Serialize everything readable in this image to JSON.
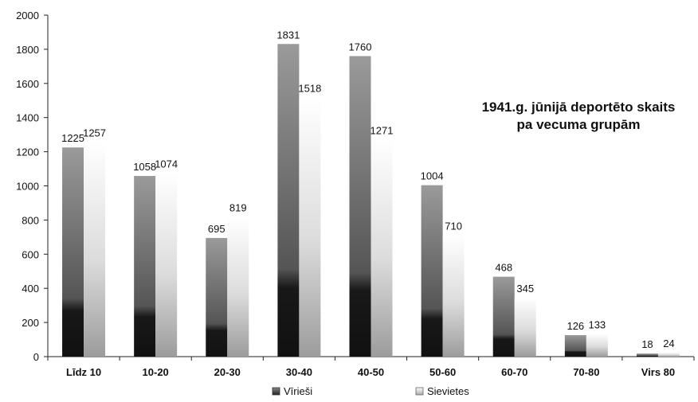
{
  "chart_data": {
    "type": "bar",
    "title_lines": [
      "1941.g. jūnijā deportēto skaits",
      "pa vecuma grupām"
    ],
    "categories": [
      "Līdz 10",
      "10-20",
      "20-30",
      "30-40",
      "40-50",
      "50-60",
      "60-70",
      "70-80",
      "Virs 80"
    ],
    "series": [
      {
        "name": "Vīrieši",
        "values": [
          1225,
          1058,
          695,
          1831,
          1760,
          1004,
          468,
          126,
          18
        ]
      },
      {
        "name": "Sievietes",
        "values": [
          1257,
          1074,
          819,
          1518,
          1271,
          710,
          345,
          133,
          24
        ]
      }
    ],
    "ylim": [
      0,
      2000
    ],
    "yticks": [
      0,
      200,
      400,
      600,
      800,
      1000,
      1200,
      1400,
      1600,
      1800,
      2000
    ],
    "grid": false,
    "legend_position": "bottom",
    "colors": {
      "men_dark": "#111111",
      "men_mid": "#555555",
      "men_light": "#9a9a9a",
      "women_mid": "#aaaaaa",
      "women_light": "#ffffff",
      "axis": "#222222",
      "text": "#111111"
    }
  }
}
